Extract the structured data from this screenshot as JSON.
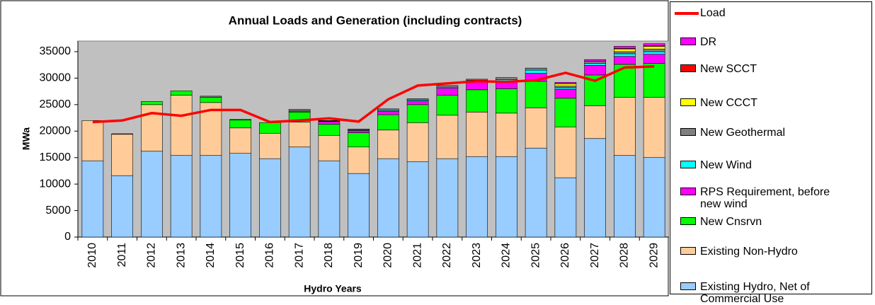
{
  "chart_data": {
    "type": "bar",
    "stacked": true,
    "title": "Annual Loads and Generation (including contracts)",
    "x_label": "Hydro Years",
    "y_label": "MWa",
    "categories": [
      "2010",
      "2011",
      "2012",
      "2013",
      "2014",
      "2015",
      "2016",
      "2017",
      "2018",
      "2019",
      "2020",
      "2021",
      "2022",
      "2023",
      "2024",
      "2025",
      "2026",
      "2027",
      "2028",
      "2029"
    ],
    "ylim": [
      0,
      37000
    ],
    "yticks": [
      0,
      5000,
      10000,
      15000,
      20000,
      25000,
      30000,
      35000
    ],
    "grid": false,
    "legend": "right",
    "series": [
      {
        "name": "Existing Hydro, Net of Commercial Use",
        "type": "bar",
        "color": "#99ccff",
        "values": [
          14400,
          11600,
          16200,
          15400,
          15400,
          15800,
          14800,
          17000,
          14400,
          12000,
          14800,
          14200,
          14800,
          15200,
          15200,
          16800,
          11200,
          18600,
          15400,
          15000
        ]
      },
      {
        "name": "Existing Non-Hydro",
        "type": "bar",
        "color": "#ffcc99",
        "values": [
          7600,
          7800,
          8800,
          11400,
          10000,
          4800,
          4800,
          4700,
          4800,
          5000,
          5400,
          7400,
          8200,
          8400,
          8200,
          7600,
          9600,
          6200,
          11000,
          11400
        ]
      },
      {
        "name": "New Cnsrvn",
        "type": "bar",
        "color": "#00ff00",
        "values": [
          0,
          0,
          600,
          800,
          1000,
          1500,
          2000,
          1900,
          2100,
          2700,
          2900,
          3400,
          3800,
          4200,
          4600,
          5000,
          5400,
          5800,
          6200,
          6400
        ]
      },
      {
        "name": "RPS Requirement, before new wind",
        "type": "bar",
        "color": "#ff00ff",
        "values": [
          0,
          0,
          0,
          0,
          0,
          0,
          0,
          200,
          500,
          400,
          600,
          700,
          1300,
          1600,
          1400,
          1500,
          1700,
          1800,
          1500,
          1700
        ]
      },
      {
        "name": "New Wind",
        "type": "bar",
        "color": "#00ffff",
        "values": [
          0,
          0,
          0,
          0,
          0,
          0,
          0,
          0,
          100,
          100,
          200,
          200,
          200,
          200,
          300,
          600,
          300,
          400,
          500,
          500
        ]
      },
      {
        "name": "New Geothermal",
        "type": "bar",
        "color": "#808080",
        "values": [
          0,
          100,
          0,
          0,
          200,
          100,
          0,
          300,
          100,
          200,
          300,
          200,
          300,
          200,
          400,
          400,
          300,
          400,
          400,
          500
        ]
      },
      {
        "name": "New CCCT",
        "type": "bar",
        "color": "#ffff00",
        "values": [
          0,
          0,
          0,
          0,
          0,
          0,
          0,
          0,
          0,
          0,
          0,
          0,
          0,
          0,
          0,
          0,
          400,
          0,
          500,
          500
        ]
      },
      {
        "name": "New SCCT",
        "type": "bar",
        "color": "#ff0000",
        "values": [
          0,
          0,
          0,
          0,
          0,
          0,
          0,
          0,
          0,
          0,
          0,
          0,
          0,
          0,
          0,
          0,
          0,
          0,
          100,
          100
        ]
      },
      {
        "name": "DR",
        "type": "bar",
        "color": "#ff00ff",
        "values": [
          0,
          0,
          0,
          0,
          0,
          0,
          0,
          0,
          0,
          0,
          0,
          0,
          0,
          0,
          0,
          0,
          300,
          300,
          400,
          400
        ]
      },
      {
        "name": "Load",
        "type": "line",
        "color": "#ff0000",
        "values": [
          21700,
          22000,
          23400,
          22900,
          24000,
          24000,
          21700,
          22000,
          22400,
          21800,
          26000,
          28600,
          29000,
          29400,
          29300,
          29600,
          31000,
          29500,
          32000,
          32200
        ]
      }
    ]
  }
}
